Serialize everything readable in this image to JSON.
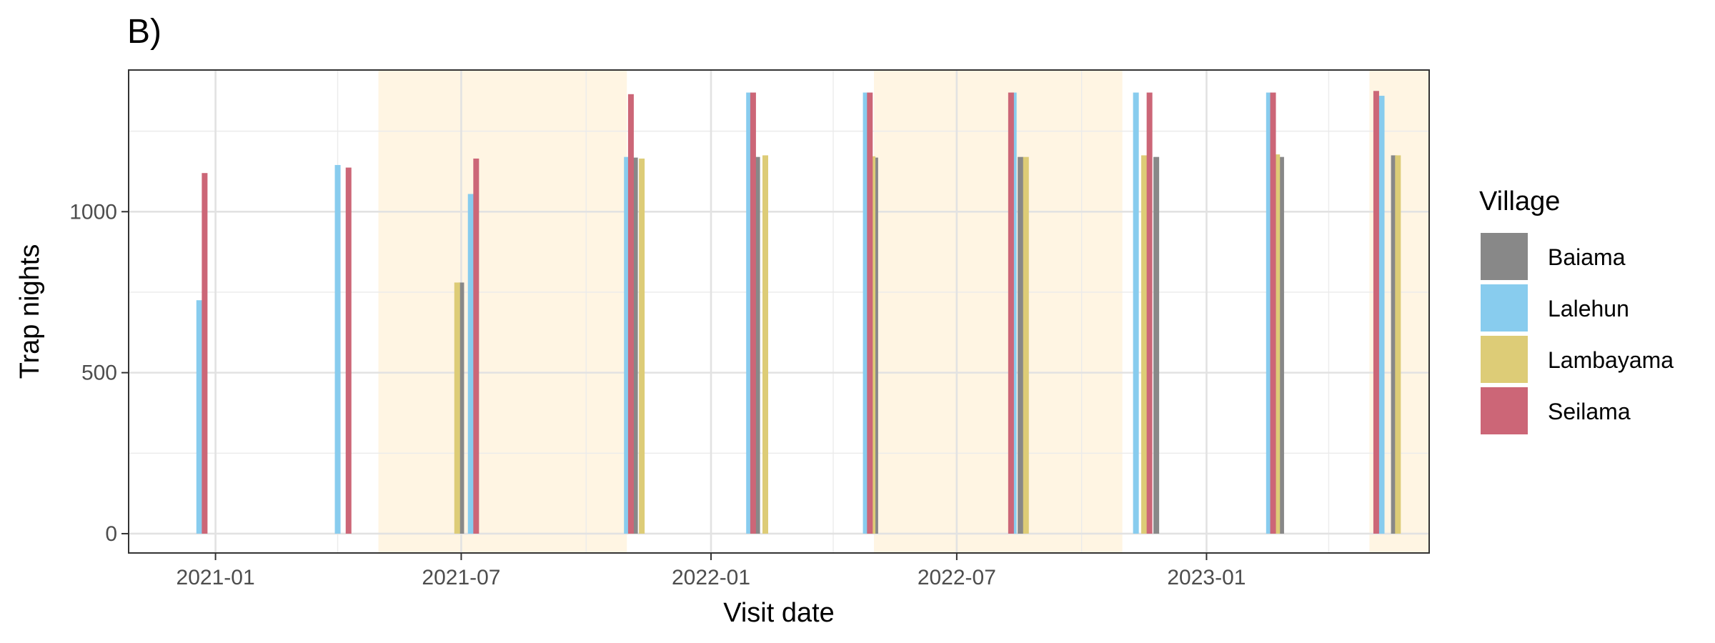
{
  "chart_data": {
    "type": "bar",
    "title": "B)",
    "xlabel": "Visit date",
    "ylabel": "Trap nights",
    "ylim": [
      -60,
      1440
    ],
    "xlim": [
      "2020-10-29",
      "2023-06-14"
    ],
    "y_ticks": [
      0,
      500,
      1000
    ],
    "x_ticks": [
      "2021-01",
      "2021-07",
      "2022-01",
      "2022-07",
      "2023-01"
    ],
    "x_tick_dates": [
      "2021-01-01",
      "2021-07-01",
      "2022-01-01",
      "2022-07-01",
      "2023-01-01"
    ],
    "grid": true,
    "legend": {
      "title": "Village",
      "position": "right"
    },
    "shaded_periods": [
      {
        "start": "2021-05-01",
        "end": "2021-10-31"
      },
      {
        "start": "2022-05-01",
        "end": "2022-10-31"
      },
      {
        "start": "2023-05-01",
        "end": "2023-06-14"
      }
    ],
    "shade_color": "#FFF5E3",
    "series": [
      {
        "name": "Baiama",
        "color": "#888888",
        "points": [
          {
            "date": "2021-07-01",
            "value": 780
          },
          {
            "date": "2021-11-06",
            "value": 1168
          },
          {
            "date": "2022-02-04",
            "value": 1170
          },
          {
            "date": "2022-05-02",
            "value": 1168
          },
          {
            "date": "2022-08-17",
            "value": 1170
          },
          {
            "date": "2022-11-25",
            "value": 1170
          },
          {
            "date": "2023-02-25",
            "value": 1170
          },
          {
            "date": "2023-05-19",
            "value": 1175
          }
        ]
      },
      {
        "name": "Lalehun",
        "color": "#88CCEE",
        "points": [
          {
            "date": "2020-12-20",
            "value": 725
          },
          {
            "date": "2021-04-01",
            "value": 1145
          },
          {
            "date": "2021-07-08",
            "value": 1055
          },
          {
            "date": "2021-10-31",
            "value": 1170
          },
          {
            "date": "2022-01-29",
            "value": 1370
          },
          {
            "date": "2022-04-25",
            "value": 1370
          },
          {
            "date": "2022-08-12",
            "value": 1370
          },
          {
            "date": "2022-11-10",
            "value": 1370
          },
          {
            "date": "2023-02-16",
            "value": 1370
          },
          {
            "date": "2023-05-10",
            "value": 1360
          }
        ]
      },
      {
        "name": "Lambayama",
        "color": "#DDCC77",
        "points": [
          {
            "date": "2021-06-28",
            "value": 780
          },
          {
            "date": "2021-11-11",
            "value": 1165
          },
          {
            "date": "2022-02-10",
            "value": 1175
          },
          {
            "date": "2022-04-30",
            "value": 1172
          },
          {
            "date": "2022-08-21",
            "value": 1170
          },
          {
            "date": "2022-11-16",
            "value": 1175
          },
          {
            "date": "2023-02-22",
            "value": 1178
          },
          {
            "date": "2023-05-22",
            "value": 1175
          }
        ]
      },
      {
        "name": "Seilama",
        "color": "#CC6677",
        "points": [
          {
            "date": "2020-12-24",
            "value": 1120
          },
          {
            "date": "2021-04-09",
            "value": 1137
          },
          {
            "date": "2021-07-12",
            "value": 1165
          },
          {
            "date": "2021-11-03",
            "value": 1365
          },
          {
            "date": "2022-02-01",
            "value": 1370
          },
          {
            "date": "2022-04-28",
            "value": 1370
          },
          {
            "date": "2022-08-10",
            "value": 1370
          },
          {
            "date": "2022-11-20",
            "value": 1370
          },
          {
            "date": "2023-02-19",
            "value": 1370
          },
          {
            "date": "2023-05-06",
            "value": 1375
          }
        ]
      }
    ]
  }
}
